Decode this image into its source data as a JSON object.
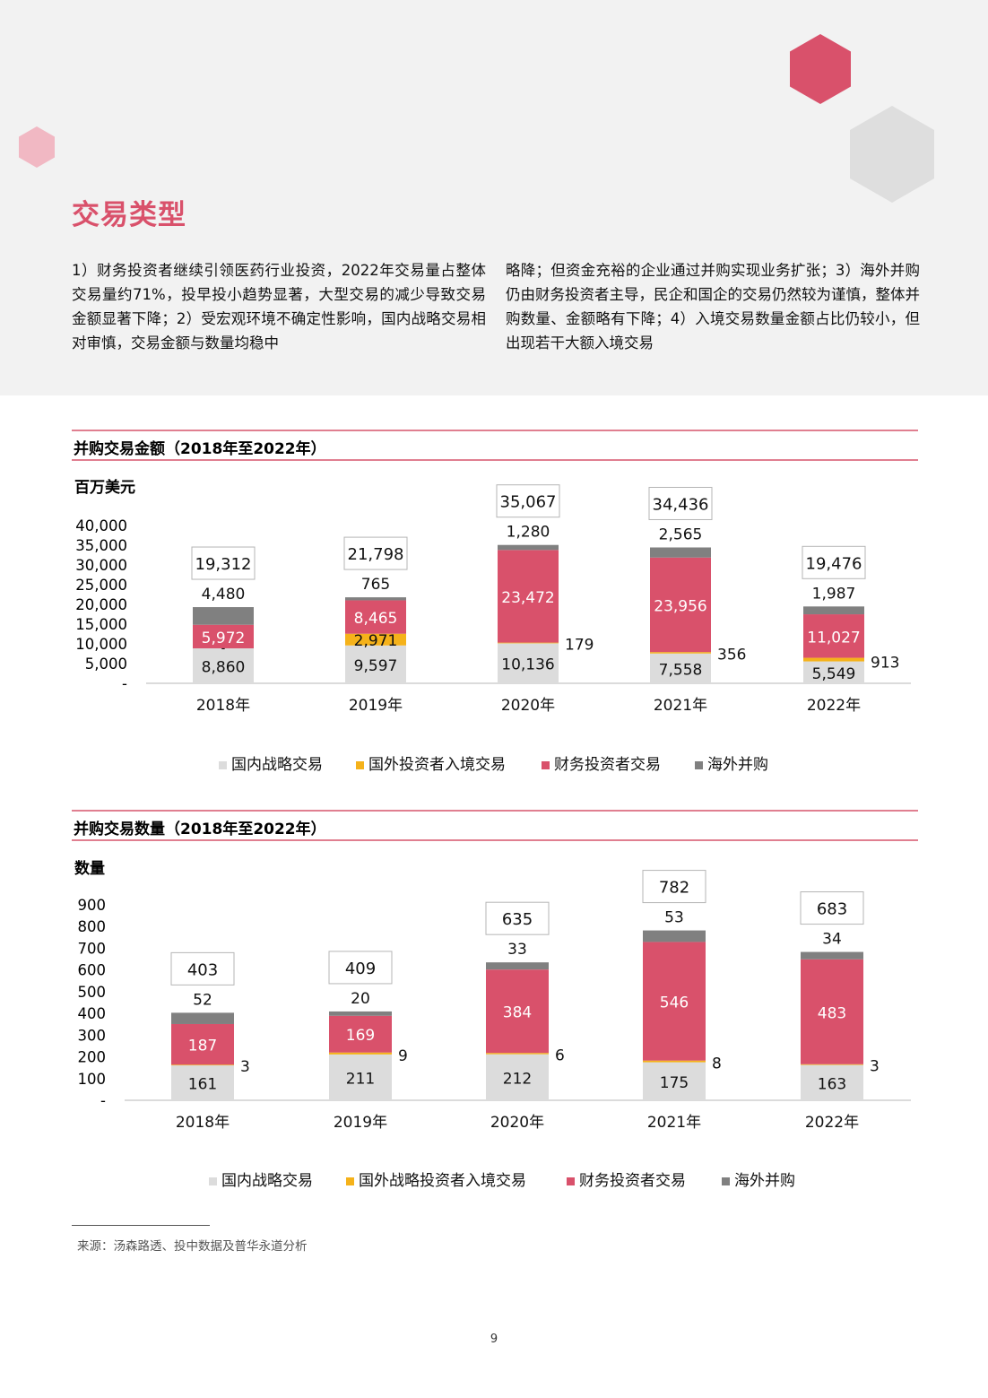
{
  "section_title": "交易类型",
  "intro": {
    "left": "1）财务投资者继续引领医药行业投资，2022年交易量占整体交易量约71%，投早投小趋势显著，大型交易的减少导致交易金额显著下降；2）受宏观环境不确定性影响，国内战略交易相对审慎，交易金额与数量均稳中",
    "right": "略降；但资金充裕的企业通过并购实现业务扩张；3）海外并购仍由财务投资者主导，民企和国企的交易仍然较为谨慎，整体并购数量、金额略有下降；4）入境交易数量金额占比仍较小，但出现若干大额入境交易"
  },
  "colors": {
    "domestic": "#dcdcdc",
    "inbound": "#f5b21a",
    "financial": "#d9516b",
    "overseas": "#808080",
    "accent": "#d9516b",
    "header_line": "#e07f90"
  },
  "chart_data": [
    {
      "type": "bar",
      "stacked": true,
      "title": "并购交易金额（2018年至2022年）",
      "ylabel": "百万美元",
      "ylim": [
        0,
        40000
      ],
      "yticks": [
        "-",
        "5,000",
        "10,000",
        "15,000",
        "20,000",
        "25,000",
        "30,000",
        "35,000",
        "40,000"
      ],
      "categories": [
        "2018年",
        "2019年",
        "2020年",
        "2021年",
        "2022年"
      ],
      "series": [
        {
          "name": "国内战略交易",
          "key": "domestic",
          "values": [
            8860,
            9597,
            10136,
            7558,
            5549
          ],
          "labels": [
            "8,860",
            "9,597",
            "10,136",
            "7,558",
            "5,549"
          ]
        },
        {
          "name": "国外投资者入境交易",
          "key": "inbound",
          "values": [
            0,
            2971,
            179,
            356,
            913
          ],
          "labels": [
            "-",
            "2,971",
            "179",
            "356",
            "913"
          ]
        },
        {
          "name": "财务投资者交易",
          "key": "financial",
          "values": [
            5972,
            8465,
            23472,
            23956,
            11027
          ],
          "labels": [
            "5,972",
            "8,465",
            "23,472",
            "23,956",
            "11,027"
          ]
        },
        {
          "name": "海外并购",
          "key": "overseas",
          "values": [
            4480,
            765,
            1280,
            2565,
            1987
          ],
          "labels": [
            "4,480",
            "765",
            "1,280",
            "2,565",
            "1,987"
          ]
        }
      ],
      "totals": [
        "19,312",
        "21,798",
        "35,067",
        "34,436",
        "19,476"
      ],
      "legend": [
        "国内战略交易",
        "国外投资者入境交易",
        "财务投资者交易",
        "海外并购"
      ],
      "legend_position": "bottom"
    },
    {
      "type": "bar",
      "stacked": true,
      "title": "并购交易数量（2018年至2022年）",
      "ylabel": "数量",
      "ylim": [
        0,
        900
      ],
      "yticks": [
        "-",
        "100",
        "200",
        "300",
        "400",
        "500",
        "600",
        "700",
        "800",
        "900"
      ],
      "categories": [
        "2018年",
        "2019年",
        "2020年",
        "2021年",
        "2022年"
      ],
      "series": [
        {
          "name": "国内战略交易",
          "key": "domestic",
          "values": [
            161,
            211,
            212,
            175,
            163
          ],
          "labels": [
            "161",
            "211",
            "212",
            "175",
            "163"
          ]
        },
        {
          "name": "国外战略投资者入境交易",
          "key": "inbound",
          "values": [
            3,
            9,
            6,
            8,
            3
          ],
          "labels": [
            "3",
            "9",
            "6",
            "8",
            "3"
          ]
        },
        {
          "name": "财务投资者交易",
          "key": "financial",
          "values": [
            187,
            169,
            384,
            546,
            483
          ],
          "labels": [
            "187",
            "169",
            "384",
            "546",
            "483"
          ]
        },
        {
          "name": "海外并购",
          "key": "overseas",
          "values": [
            52,
            20,
            33,
            53,
            34
          ],
          "labels": [
            "52",
            "20",
            "33",
            "53",
            "34"
          ]
        }
      ],
      "totals": [
        "403",
        "409",
        "635",
        "782",
        "683"
      ],
      "legend": [
        "国内战略交易",
        "国外战略投资者入境交易",
        "财务投资者交易",
        "海外并购"
      ],
      "legend_position": "bottom"
    }
  ],
  "footnote": "来源：汤森路透、投中数据及普华永道分析",
  "page_number": "9"
}
